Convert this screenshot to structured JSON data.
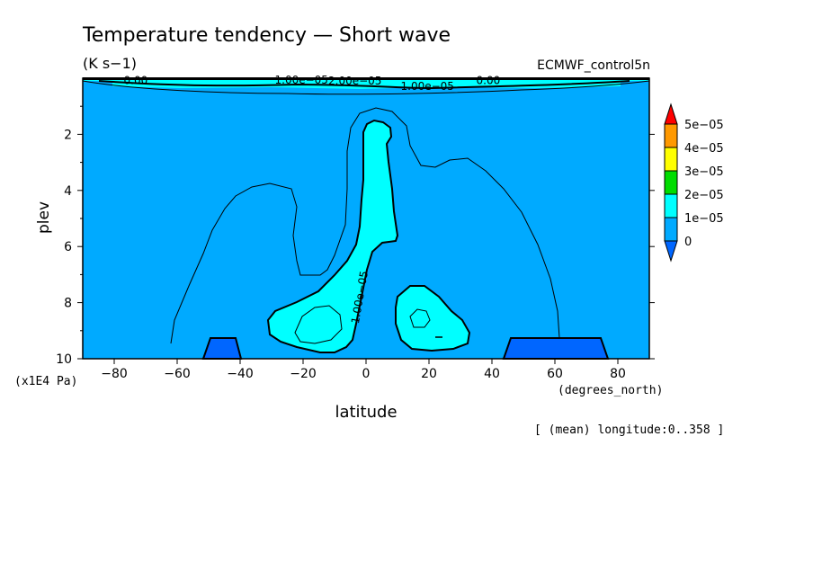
{
  "chart_data": {
    "type": "contour",
    "title": "Temperature tendency — Short wave",
    "units": "(K s−1)",
    "dataset": "ECMWF_control5n",
    "xlabel": "latitude",
    "xunits": "(degrees_north)",
    "ylabel": "plev",
    "yunits": "(x1E4 Pa)",
    "note": "[ (mean) longitude:0..358 ]",
    "xlim": [
      -90,
      90
    ],
    "ylim": [
      10,
      0
    ],
    "xticks": [
      "−80",
      "−60",
      "−40",
      "−20",
      "0",
      "20",
      "40",
      "60",
      "80"
    ],
    "xtick_values": [
      -80,
      -60,
      -40,
      -20,
      0,
      20,
      40,
      60,
      80
    ],
    "yticks": [
      "2",
      "4",
      "6",
      "8",
      "10"
    ],
    "ytick_values": [
      2,
      4,
      6,
      8,
      10
    ],
    "contour_labels": [
      {
        "text": "0.00",
        "x": -77,
        "y": 0.05
      },
      {
        "text": "1.00e−05",
        "x": -29,
        "y": 0.04
      },
      {
        "text": "2.00e−05",
        "x": -12,
        "y": 0.07
      },
      {
        "text": "1.00e−05",
        "x": 11,
        "y": 0.25
      },
      {
        "text": "0.00",
        "x": 35,
        "y": 0.05
      },
      {
        "text": "1.00e−05",
        "x": -2,
        "y": 7.8
      }
    ],
    "colorbar": {
      "labels": [
        "5e−05",
        "4e−05",
        "3e−05",
        "2e−05",
        "1e−05",
        "0"
      ],
      "colors": [
        "#ff0000",
        "#ff9900",
        "#ffff00",
        "#00dd00",
        "#00ffff",
        "#00aaff",
        "#0066ff"
      ]
    },
    "colors": {
      "background": "#00aaff",
      "level_1e5": "#00ffff",
      "below_zero": "#0066ff"
    }
  }
}
